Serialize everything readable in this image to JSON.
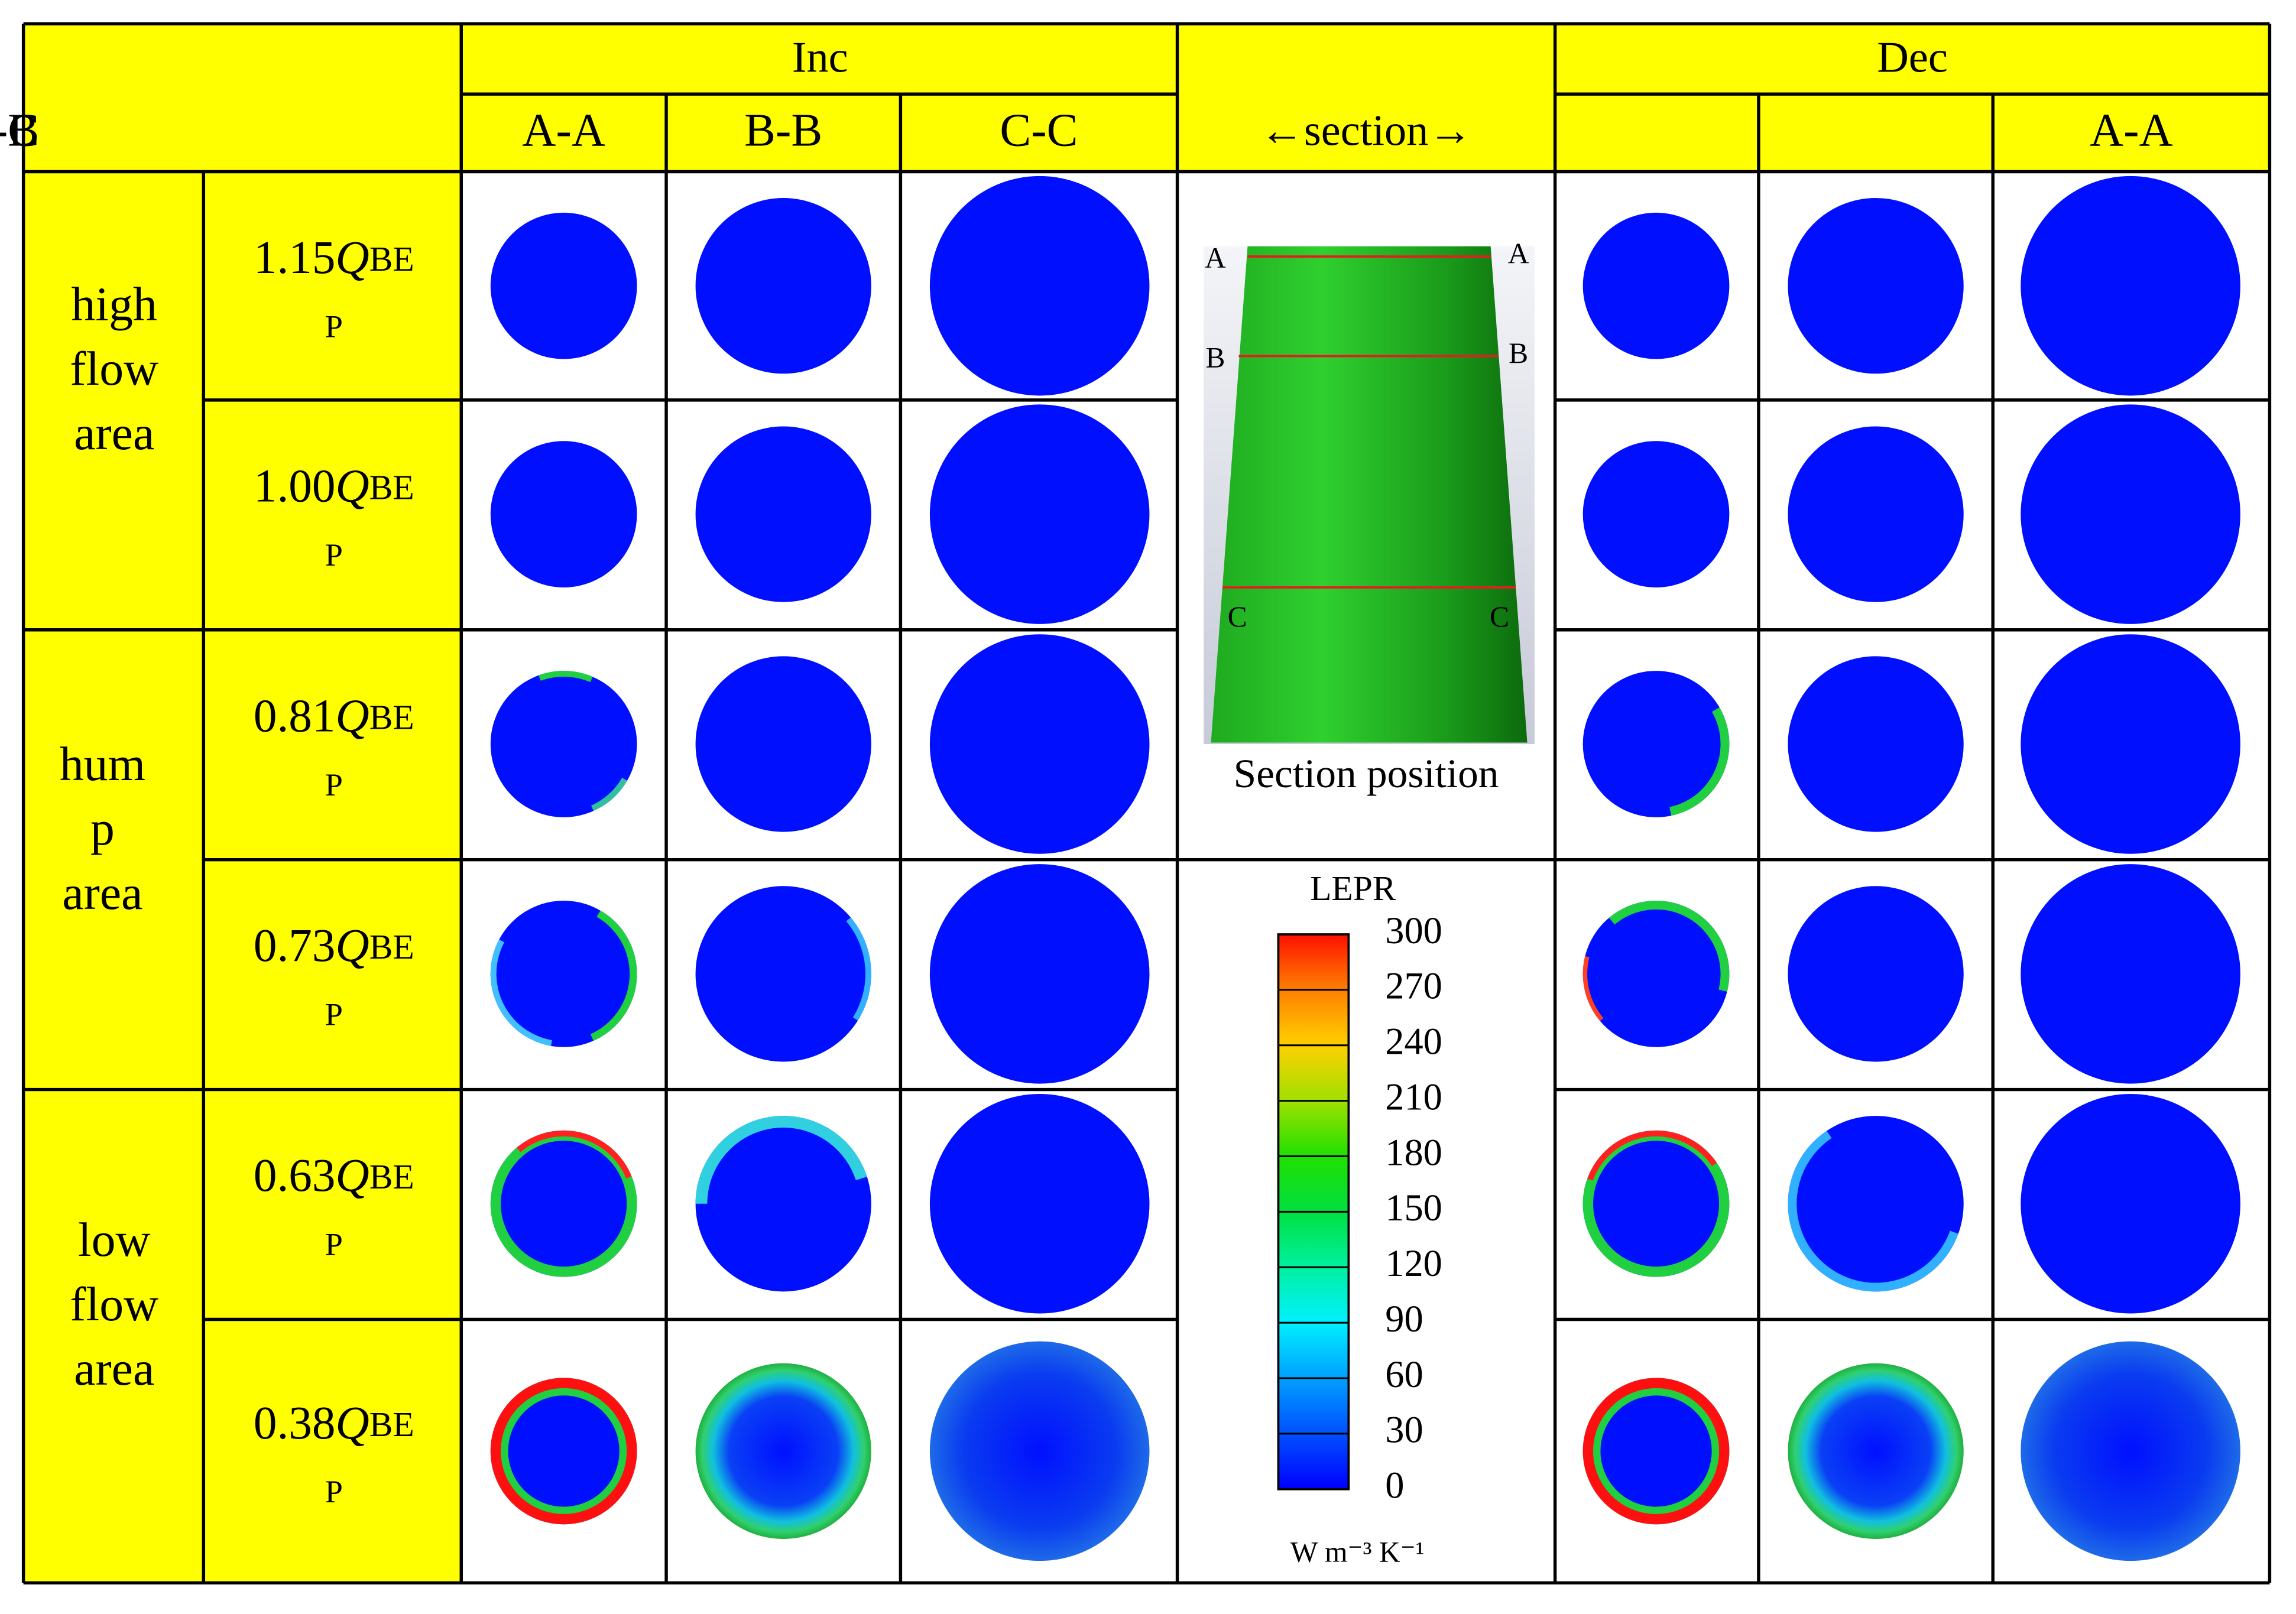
{
  "header": {
    "groups": [
      "Inc",
      "Dec"
    ],
    "section_header": "←section→",
    "sections": [
      "A-A",
      "B-B",
      "C-C"
    ]
  },
  "groups": [
    {
      "lines": [
        "high",
        "flow",
        "area"
      ]
    },
    {
      "lines": [
        "hum",
        "p",
        "area"
      ]
    },
    {
      "lines": [
        "low",
        "flow",
        "area"
      ]
    }
  ],
  "rows": [
    {
      "coefficient": "1.15",
      "symbol": "Q",
      "subscript": "BE",
      "subscript_wrap": "P"
    },
    {
      "coefficient": "1.00",
      "symbol": "Q",
      "subscript": "BE",
      "subscript_wrap": "P"
    },
    {
      "coefficient": "0.81",
      "symbol": "Q",
      "subscript": "BE",
      "subscript_wrap": "P"
    },
    {
      "coefficient": "0.73",
      "symbol": "Q",
      "subscript": "BE",
      "subscript_wrap": "P"
    },
    {
      "coefficient": "0.63",
      "symbol": "Q",
      "subscript": "BE",
      "subscript_wrap": "P"
    },
    {
      "coefficient": "0.38",
      "symbol": "Q",
      "subscript": "BE",
      "subscript_wrap": "P"
    }
  ],
  "section_image": {
    "labels": [
      "A",
      "B",
      "C"
    ],
    "caption": "Section position"
  },
  "legend": {
    "title": "LEPR",
    "ticks": [
      300,
      270,
      240,
      210,
      180,
      150,
      120,
      90,
      60,
      30,
      0
    ],
    "unit": "W m⁻³ K⁻¹"
  }
}
